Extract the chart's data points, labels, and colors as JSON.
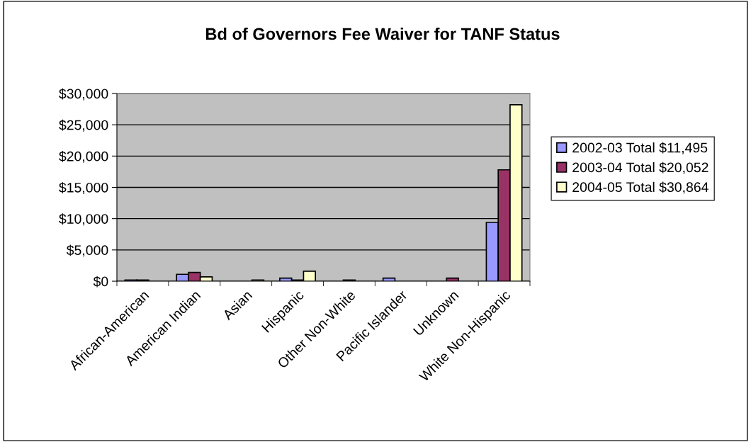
{
  "chart_data": {
    "type": "bar",
    "title": "Bd of Governors Fee Waiver for TANF Status",
    "categories": [
      "African-American",
      "American Indian",
      "Asian",
      "Hispanic",
      "Other Non-White",
      "Pacific Islander",
      "Unknown",
      "White Non-Hispanic"
    ],
    "series": [
      {
        "name": "2002-03 Total $11,495",
        "color": "#9999ff",
        "values": [
          200,
          1100,
          null,
          500,
          null,
          500,
          null,
          9400
        ]
      },
      {
        "name": "2003-04 Total $20,052",
        "color": "#993366",
        "values": [
          200,
          1400,
          null,
          200,
          200,
          null,
          500,
          17800
        ]
      },
      {
        "name": "2004-05 Total $30,864",
        "color": "#ffffcc",
        "values": [
          null,
          700,
          200,
          1600,
          null,
          null,
          null,
          28200
        ]
      }
    ],
    "ylim": [
      0,
      30000
    ],
    "yticks": [
      {
        "value": 0,
        "label": "$0"
      },
      {
        "value": 5000,
        "label": "$5,000"
      },
      {
        "value": 10000,
        "label": "$10,000"
      },
      {
        "value": 15000,
        "label": "$15,000"
      },
      {
        "value": 20000,
        "label": "$20,000"
      },
      {
        "value": 25000,
        "label": "$25,000"
      },
      {
        "value": 30000,
        "label": "$30,000"
      }
    ],
    "grid": "y",
    "legend": "right"
  }
}
